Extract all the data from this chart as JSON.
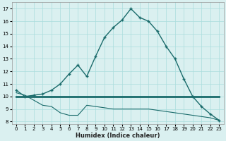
{
  "x": [
    0,
    1,
    2,
    3,
    4,
    5,
    6,
    7,
    8,
    9,
    10,
    11,
    12,
    13,
    14,
    15,
    16,
    17,
    18,
    19,
    20,
    21,
    22,
    23
  ],
  "y_main": [
    10.5,
    10.0,
    10.1,
    10.2,
    10.5,
    11.0,
    11.8,
    12.5,
    11.6,
    13.2,
    14.7,
    15.5,
    16.1,
    17.0,
    16.3,
    16.0,
    15.2,
    14.0,
    13.0,
    11.4,
    10.0,
    9.2,
    8.6,
    8.1
  ],
  "y_flat": [
    10.0,
    10.0,
    10.0,
    10.0,
    10.0,
    10.0,
    10.0,
    10.0,
    10.0,
    10.0,
    10.0,
    10.0,
    10.0,
    10.0,
    10.0,
    10.0,
    10.0,
    10.0,
    10.0,
    10.0,
    10.0,
    10.0,
    10.0,
    10.0
  ],
  "y_decline": [
    10.3,
    10.1,
    9.7,
    9.3,
    9.2,
    8.7,
    8.5,
    8.5,
    9.3,
    9.2,
    9.1,
    9.0,
    9.0,
    9.0,
    9.0,
    9.0,
    8.9,
    8.8,
    8.7,
    8.6,
    8.5,
    8.4,
    8.3,
    8.1
  ],
  "line_color": "#1a6b6b",
  "bg_color": "#daf0f0",
  "grid_color": "#aadddd",
  "xlabel": "Humidex (Indice chaleur)",
  "ylim": [
    7.8,
    17.5
  ],
  "xlim": [
    -0.5,
    23.5
  ],
  "yticks": [
    8,
    9,
    10,
    11,
    12,
    13,
    14,
    15,
    16,
    17
  ],
  "xticks": [
    0,
    1,
    2,
    3,
    4,
    5,
    6,
    7,
    8,
    9,
    10,
    11,
    12,
    13,
    14,
    15,
    16,
    17,
    18,
    19,
    20,
    21,
    22,
    23
  ]
}
